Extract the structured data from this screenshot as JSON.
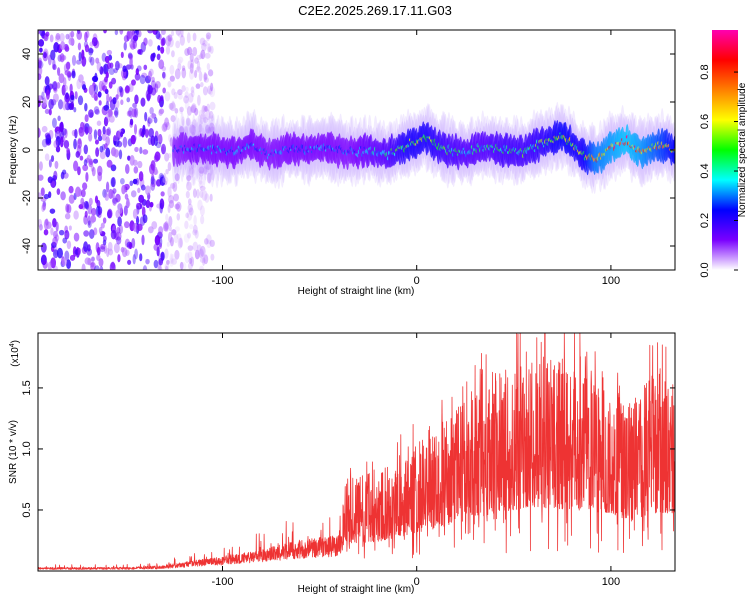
{
  "title": "C2E2.2025.269.17.11.G03",
  "chart_data": [
    {
      "type": "heatmap",
      "name": "spectrogram",
      "xlabel": "Height of straight line (km)",
      "ylabel": "Frequency (Hz)",
      "xlim": [
        -195,
        133
      ],
      "ylim": [
        -50,
        50
      ],
      "x_ticks": [
        -100,
        0,
        100
      ],
      "x_tick_labels": [
        "-100",
        "0",
        "100"
      ],
      "y_ticks": [
        -40,
        -20,
        0,
        20,
        40
      ],
      "y_tick_labels": [
        "-40",
        "-20",
        "0",
        "20",
        "40"
      ],
      "colorbar": {
        "label": "Normalized spectral amplitude",
        "range": [
          0,
          0.97
        ],
        "ticks": [
          0.0,
          0.2,
          0.4,
          0.6,
          0.8
        ],
        "tick_labels": [
          "0.0",
          "0.2",
          "0.4",
          "0.6",
          "0.8"
        ],
        "colors": [
          "#ffffff",
          "#7a00ff",
          "#0000ff",
          "#00ffff",
          "#00ff00",
          "#ffff00",
          "#ff8000",
          "#ff0000",
          "#ff00b0"
        ]
      },
      "noise_region_x": [
        -195,
        -105
      ],
      "signal_start_x": -125,
      "ridge": {
        "x": [
          -125,
          -115,
          -105,
          -95,
          -85,
          -75,
          -65,
          -55,
          -45,
          -35,
          -25,
          -15,
          -5,
          5,
          15,
          25,
          35,
          45,
          55,
          65,
          75,
          85,
          92,
          100,
          108,
          115,
          125,
          133
        ],
        "y": [
          0,
          1,
          0,
          -1,
          2,
          -2,
          1,
          0,
          1,
          -1,
          0,
          -2,
          2,
          5,
          0,
          -1,
          1,
          0,
          -1,
          3,
          6,
          -2,
          -4,
          1,
          4,
          -1,
          2,
          0
        ],
        "amplitude": [
          0.25,
          0.3,
          0.3,
          0.3,
          0.3,
          0.28,
          0.3,
          0.3,
          0.3,
          0.28,
          0.35,
          0.4,
          0.55,
          0.55,
          0.45,
          0.4,
          0.4,
          0.45,
          0.45,
          0.5,
          0.6,
          0.55,
          0.75,
          0.8,
          0.85,
          0.8,
          0.7,
          0.6
        ]
      }
    },
    {
      "type": "line",
      "name": "snr",
      "xlabel": "Height of straight line (km)",
      "ylabel": "SNR (10 * v/v)",
      "scale_note_prefix": "(x10",
      "scale_note_exp": "4",
      "scale_note_suffix": ")",
      "xlim": [
        -195,
        133
      ],
      "ylim": [
        0,
        1.95
      ],
      "x_ticks": [
        -100,
        0,
        100
      ],
      "x_tick_labels": [
        "-100",
        "0",
        "100"
      ],
      "y_ticks": [
        0.5,
        1.0,
        1.5
      ],
      "y_tick_labels": [
        "0.5",
        "1.0",
        "1.5"
      ],
      "color": "#ee3333",
      "envelope": {
        "x": [
          -195,
          -150,
          -130,
          -120,
          -100,
          -80,
          -60,
          -40,
          -37,
          -20,
          0,
          20,
          40,
          60,
          80,
          100,
          110,
          120,
          133
        ],
        "y": [
          0.02,
          0.02,
          0.03,
          0.05,
          0.08,
          0.12,
          0.17,
          0.2,
          0.45,
          0.48,
          0.62,
          0.78,
          0.95,
          1.05,
          1.0,
          0.95,
          0.8,
          0.95,
          0.95
        ]
      },
      "peak_value": 1.95,
      "peak_x": 66
    }
  ]
}
